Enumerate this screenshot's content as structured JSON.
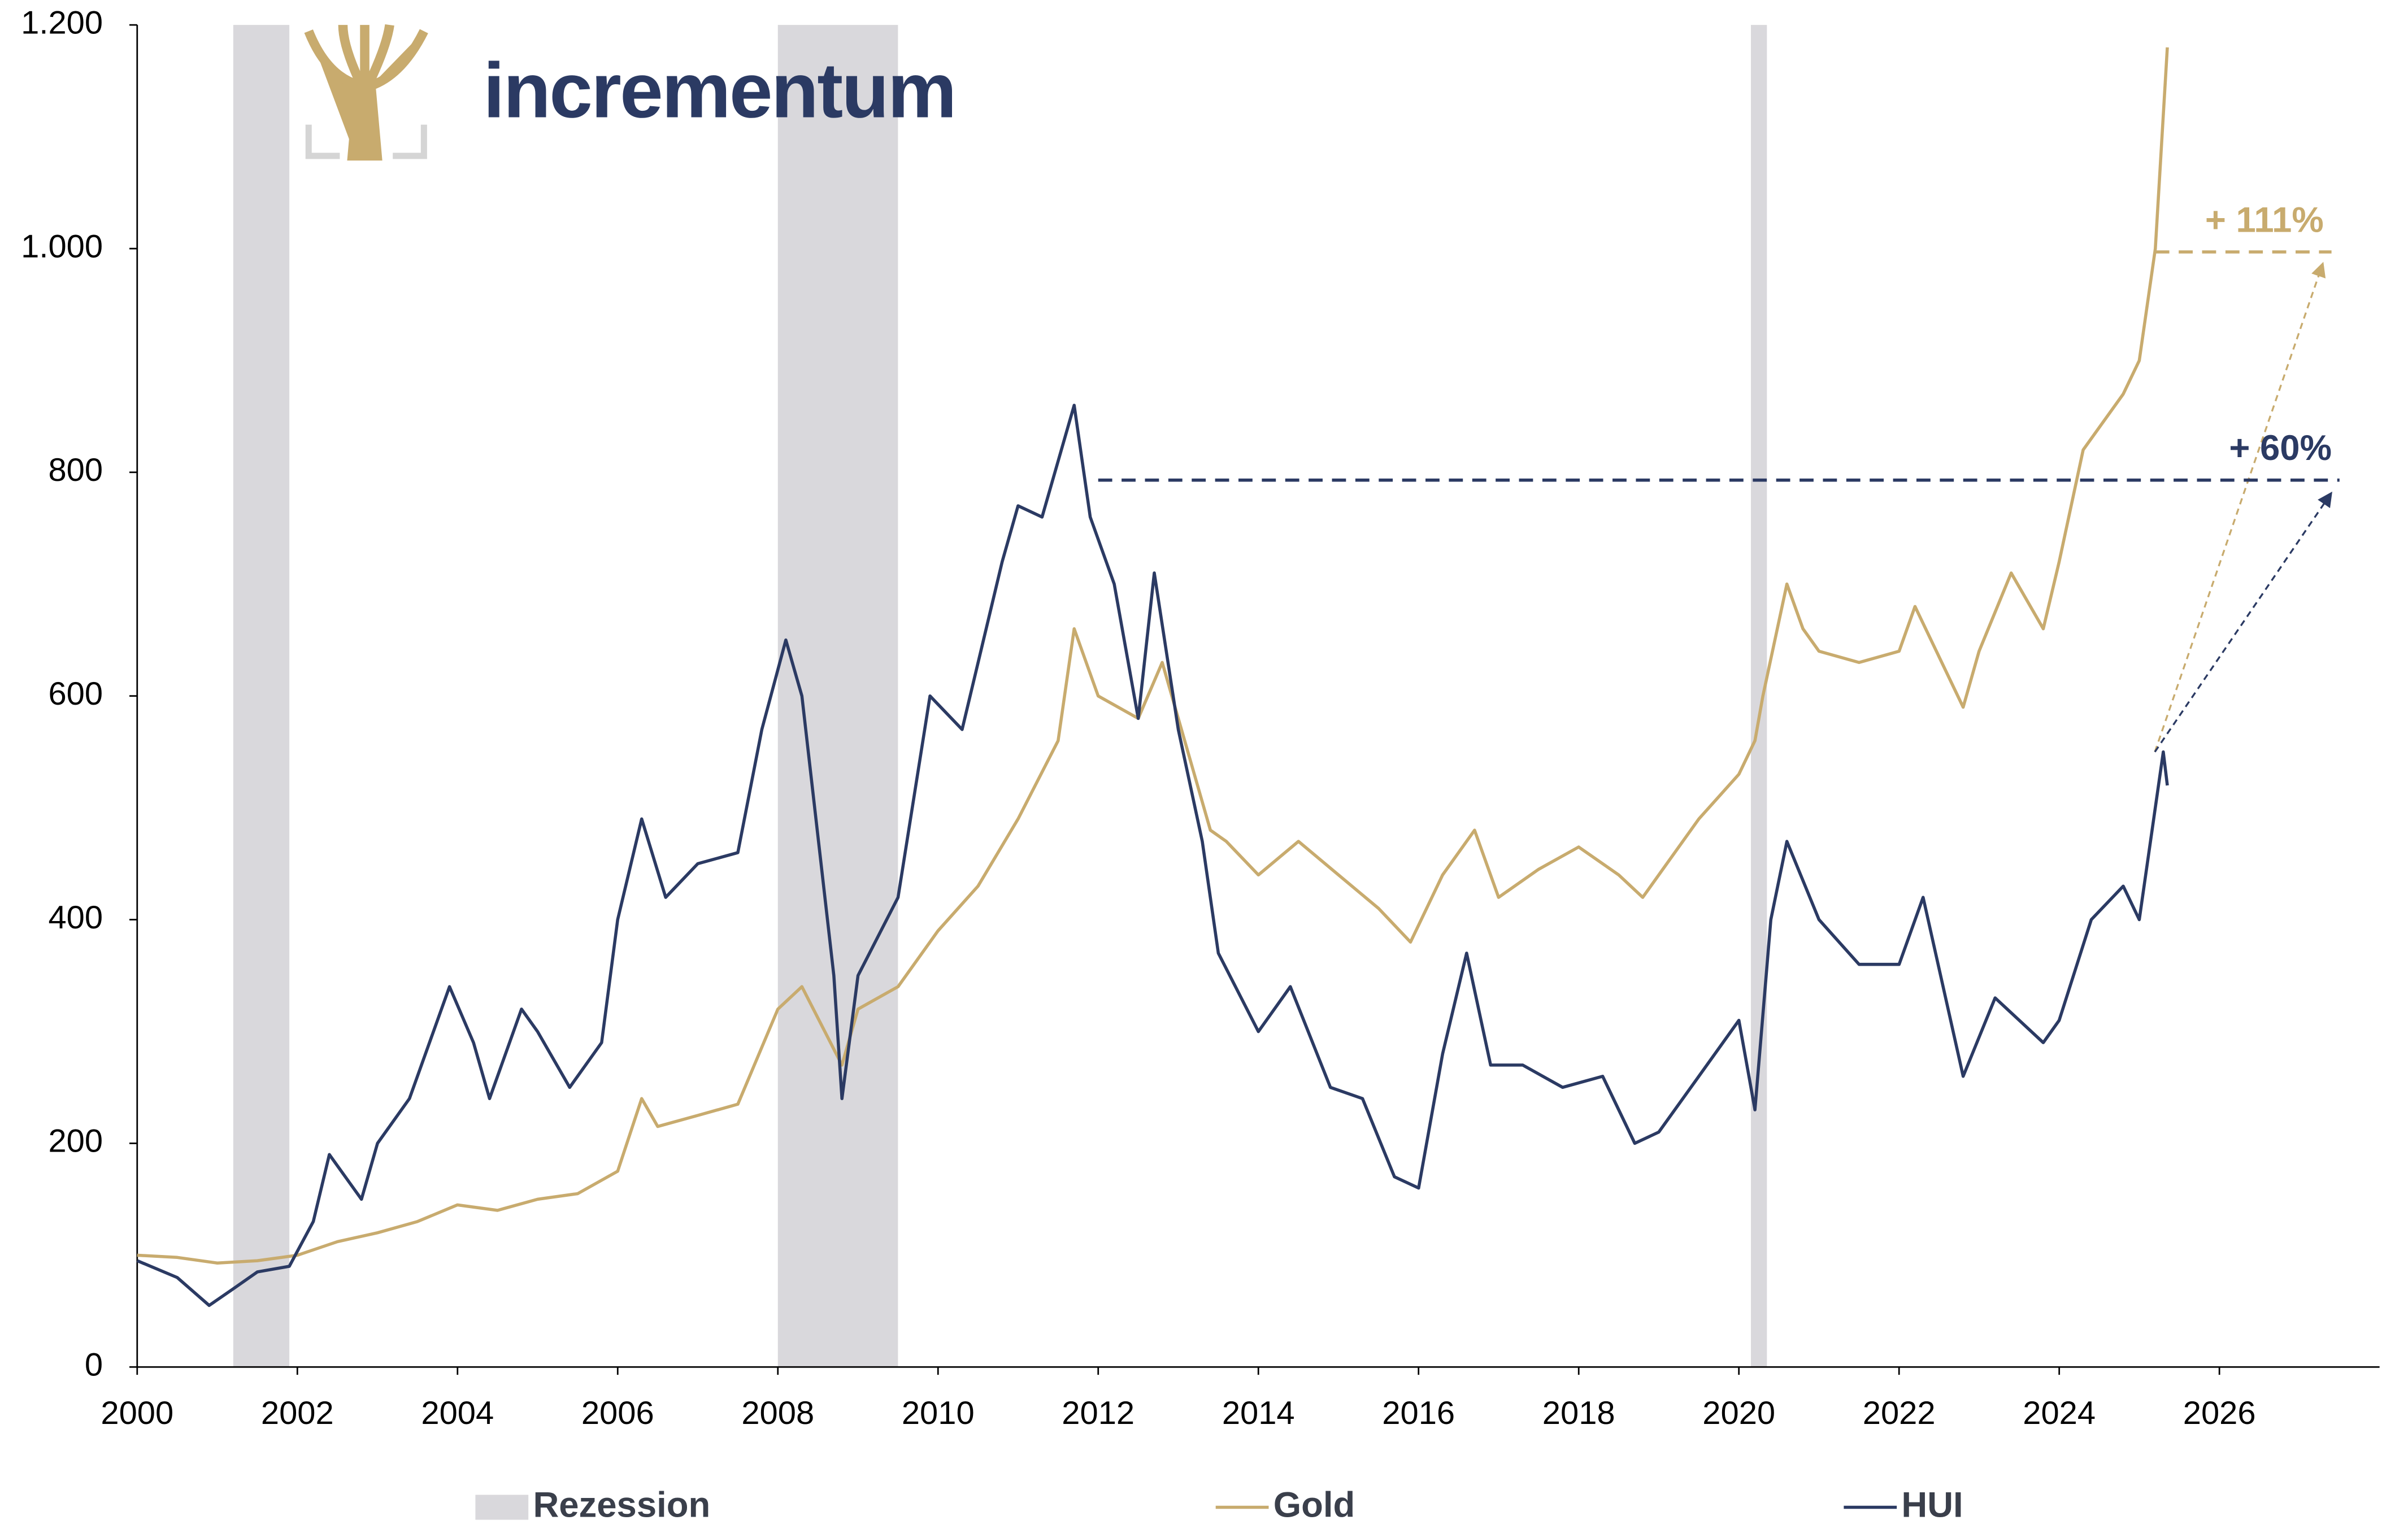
{
  "chart_data": {
    "type": "line",
    "logo": "incrementum",
    "xlim": [
      2000,
      2028
    ],
    "xticks": [
      2000,
      2002,
      2004,
      2006,
      2008,
      2010,
      2012,
      2014,
      2016,
      2018,
      2020,
      2022,
      2024,
      2026
    ],
    "ylim": [
      0,
      1200
    ],
    "yticks": [
      0,
      200,
      400,
      600,
      800,
      {
        "value": 1000,
        "label": "1.000"
      },
      {
        "value": 1200,
        "label": "1.200"
      }
    ],
    "recession": {
      "name": "Rezession",
      "color": "#d9d8dc",
      "periods": [
        [
          2001.2,
          2001.9
        ],
        [
          2008.0,
          2009.5
        ],
        [
          2020.15,
          2020.35
        ]
      ]
    },
    "series": [
      {
        "name": "Gold",
        "color": "#c8ab6e",
        "x": [
          2000,
          2000.5,
          2001,
          2001.5,
          2002,
          2002.5,
          2003,
          2003.5,
          2004,
          2004.5,
          2005,
          2005.5,
          2006,
          2006.3,
          2006.5,
          2007,
          2007.5,
          2008,
          2008.3,
          2008.8,
          2009,
          2009.5,
          2010,
          2010.5,
          2011,
          2011.5,
          2011.7,
          2012,
          2012.5,
          2012.8,
          2013,
          2013.4,
          2013.6,
          2014,
          2014.5,
          2015,
          2015.5,
          2015.9,
          2016.3,
          2016.7,
          2017,
          2017.5,
          2018,
          2018.5,
          2018.8,
          2019,
          2019.5,
          2020,
          2020.2,
          2020.3,
          2020.6,
          2020.8,
          2021,
          2021.5,
          2022,
          2022.2,
          2022.8,
          2023,
          2023.4,
          2023.8,
          2024,
          2024.3,
          2024.8,
          2025,
          2025.2,
          2025.35
        ],
        "values": [
          100,
          98,
          93,
          95,
          100,
          112,
          120,
          130,
          145,
          140,
          150,
          155,
          175,
          240,
          215,
          225,
          235,
          320,
          340,
          270,
          320,
          340,
          390,
          430,
          490,
          560,
          660,
          600,
          580,
          630,
          580,
          480,
          470,
          440,
          470,
          440,
          410,
          380,
          440,
          480,
          420,
          445,
          465,
          440,
          420,
          440,
          490,
          530,
          560,
          600,
          700,
          660,
          640,
          630,
          640,
          680,
          590,
          640,
          710,
          660,
          720,
          820,
          870,
          900,
          1000,
          1180
        ]
      },
      {
        "name": "HUI",
        "color": "#2b3a63",
        "x": [
          2000,
          2000.5,
          2000.9,
          2001.2,
          2001.5,
          2001.9,
          2002.2,
          2002.4,
          2002.8,
          2003,
          2003.4,
          2003.9,
          2004.2,
          2004.4,
          2004.8,
          2005,
          2005.4,
          2005.8,
          2006,
          2006.3,
          2006.6,
          2007,
          2007.5,
          2007.8,
          2008.1,
          2008.3,
          2008.7,
          2008.8,
          2009,
          2009.5,
          2009.9,
          2010.3,
          2010.8,
          2011,
          2011.3,
          2011.7,
          2011.9,
          2012.2,
          2012.5,
          2012.7,
          2013,
          2013.3,
          2013.5,
          2014,
          2014.4,
          2014.9,
          2015.3,
          2015.7,
          2016,
          2016.3,
          2016.6,
          2016.9,
          2017.3,
          2017.8,
          2018.3,
          2018.7,
          2019,
          2019.5,
          2020,
          2020.2,
          2020.4,
          2020.6,
          2021,
          2021.5,
          2022,
          2022.3,
          2022.8,
          2023.2,
          2023.8,
          2024,
          2024.4,
          2024.8,
          2025,
          2025.3,
          2025.35
        ],
        "values": [
          95,
          80,
          55,
          70,
          85,
          90,
          130,
          190,
          150,
          200,
          240,
          340,
          290,
          240,
          320,
          300,
          250,
          290,
          400,
          490,
          420,
          450,
          460,
          570,
          650,
          600,
          350,
          240,
          350,
          420,
          600,
          570,
          720,
          770,
          760,
          860,
          760,
          700,
          580,
          710,
          570,
          470,
          370,
          300,
          340,
          250,
          240,
          170,
          160,
          280,
          370,
          270,
          270,
          250,
          260,
          200,
          210,
          260,
          310,
          230,
          400,
          470,
          400,
          360,
          360,
          420,
          260,
          330,
          290,
          310,
          400,
          430,
          400,
          550,
          520
        ]
      }
    ],
    "annotations": [
      {
        "text": "+ 111%",
        "series": 0,
        "level": 997,
        "from": 2025.2,
        "to": 2027.4,
        "arrow_end": 985
      },
      {
        "text": "+ 60%",
        "series": 1,
        "level": 793,
        "from": 2012.0,
        "to": 2027.5,
        "arrow_end": 780
      }
    ]
  }
}
